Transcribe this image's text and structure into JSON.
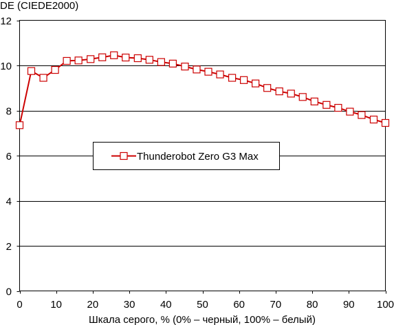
{
  "chart_data": {
    "type": "line",
    "ylabel": "DE (CIEDE2000)",
    "xlabel": "Шкала серого, % (0% – черный, 100% – белый)",
    "xlim": [
      0,
      100
    ],
    "ylim": [
      0,
      12
    ],
    "xticks": [
      "0",
      "10",
      "20",
      "30",
      "40",
      "50",
      "60",
      "70",
      "80",
      "90",
      "100"
    ],
    "yticks": [
      "0",
      "2",
      "4",
      "6",
      "8",
      "10",
      "12"
    ],
    "grid": "horizontal",
    "legend_position": "center-left",
    "series": [
      {
        "name": "Thunderobot Zero G3 Max",
        "color": "#cc0000",
        "marker": "square",
        "x": [
          0,
          3.2,
          6.5,
          9.7,
          12.9,
          16.1,
          19.4,
          22.6,
          25.8,
          29.0,
          32.3,
          35.5,
          38.7,
          41.9,
          45.2,
          48.4,
          51.6,
          54.8,
          58.1,
          61.3,
          64.5,
          67.7,
          71.0,
          74.2,
          77.4,
          80.6,
          83.9,
          87.1,
          90.3,
          93.5,
          96.8,
          100
        ],
        "y": [
          7.35,
          9.75,
          9.45,
          9.8,
          10.2,
          10.22,
          10.28,
          10.36,
          10.45,
          10.35,
          10.32,
          10.25,
          10.15,
          10.08,
          9.95,
          9.82,
          9.72,
          9.6,
          9.45,
          9.35,
          9.2,
          9.0,
          8.85,
          8.75,
          8.6,
          8.4,
          8.25,
          8.12,
          7.95,
          7.8,
          7.6,
          7.45
        ]
      }
    ]
  }
}
